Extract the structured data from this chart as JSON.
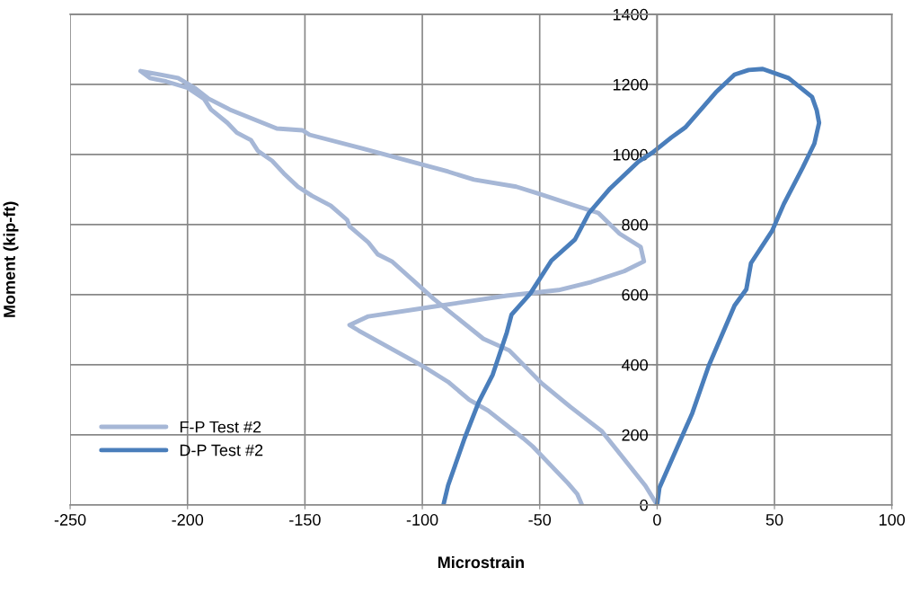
{
  "chart_data": {
    "type": "line",
    "xlabel": "Microstrain",
    "ylabel": "Moment (kip-ft)",
    "xlim": [
      -250,
      100
    ],
    "xticks": [
      -250,
      -200,
      -150,
      -100,
      -50,
      0,
      50,
      100
    ],
    "ylim": [
      0,
      1400
    ],
    "yticks": [
      0,
      200,
      400,
      600,
      800,
      1000,
      1200,
      1400
    ],
    "grid": true,
    "legend": "bottom left",
    "marker": "none",
    "line_style": "solid",
    "series": [
      {
        "name": "F-P Test #2",
        "color": "#a6b7d6",
        "x": [
          0,
          -5,
          -23.5,
          -37,
          -49,
          -63,
          -74,
          -95,
          -113,
          -119,
          -123,
          -131,
          -132,
          -139,
          -147,
          -153,
          -159,
          -164,
          -170,
          -173,
          -179,
          -183,
          -190,
          -193,
          -200,
          -209,
          -216,
          -220,
          -212,
          -204,
          -197,
          -191,
          -182,
          -162,
          -151,
          -148,
          -126,
          -116,
          -89,
          -78,
          -60,
          -50,
          -35,
          -25,
          -16,
          -7,
          -5.6,
          -14,
          -28,
          -42,
          -64,
          -96,
          -123,
          -131,
          -127,
          -100,
          -89,
          -80,
          -72,
          -57,
          -53,
          -38,
          -34,
          -32
        ],
        "values": [
          0,
          55,
          210,
          280,
          346,
          441,
          474,
          587,
          695,
          715,
          749,
          795,
          813,
          854,
          882,
          908,
          946,
          982,
          1010,
          1041,
          1062,
          1090,
          1128,
          1159,
          1190,
          1208,
          1218,
          1238,
          1228,
          1218,
          1190,
          1159,
          1128,
          1074,
          1069,
          1056,
          1018,
          1000,
          951,
          928,
          908,
          887,
          854,
          833,
          774,
          736,
          695,
          667,
          636,
          613,
          597,
          565,
          538,
          513,
          497,
          397,
          351,
          300,
          269,
          190,
          167,
          62,
          31,
          0
        ]
      },
      {
        "name": "D-P Test #2",
        "color": "#4a7ebb",
        "x": [
          -91,
          -89,
          -82,
          -76,
          -70,
          -64,
          -62,
          -54,
          -45,
          -35,
          -29,
          -20,
          -8,
          -2,
          6,
          12,
          25,
          33,
          39,
          45,
          56,
          66,
          68,
          69,
          67,
          62,
          54,
          49,
          40,
          38,
          33,
          22,
          15,
          1,
          0
        ],
        "values": [
          0,
          56,
          190,
          293,
          372,
          492,
          543,
          603,
          697,
          757,
          833,
          903,
          979,
          1005,
          1048,
          1077,
          1177,
          1228,
          1241,
          1244,
          1218,
          1164,
          1126,
          1090,
          1031,
          962,
          859,
          782,
          690,
          615,
          569,
          397,
          262,
          49,
          0
        ]
      }
    ]
  }
}
